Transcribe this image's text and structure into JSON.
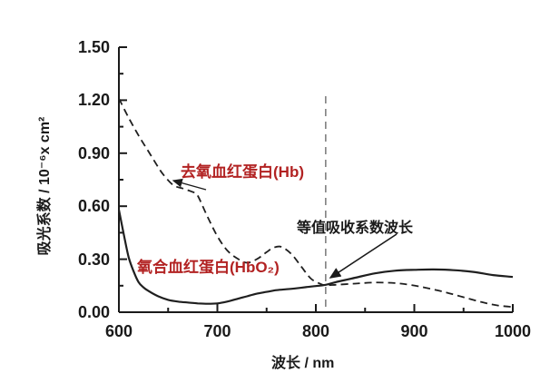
{
  "colors": {
    "curve": "#1f1f1f",
    "axis": "#1a1a1a",
    "red_label": "#b22222",
    "isosbestic_line": "#777777"
  },
  "labels": {
    "y_axis": "吸光系数 / 10⁻⁶x cm²",
    "x_axis": "波长 / nm",
    "hb": "去氧血红蛋白(Hb)",
    "hbo2": "氧合血红蛋白(HbO₂)",
    "annotation": "等值吸收系数波长"
  },
  "chart_data": {
    "type": "line",
    "title": "",
    "xlabel": "波长 / nm",
    "ylabel": "吸光系数 / 10⁻⁶x cm²",
    "xlim": [
      600,
      1000
    ],
    "ylim": [
      0,
      1.5
    ],
    "grid": false,
    "legend_position": "inline-labels",
    "x_major_ticks": [
      600,
      700,
      800,
      900,
      1000
    ],
    "x_minor_ticks": [
      650,
      750,
      850,
      950
    ],
    "y_major_ticks": [
      0.0,
      0.3,
      0.6,
      0.9,
      1.2,
      1.5
    ],
    "y_minor_ticks": [
      0.15,
      0.45,
      0.75,
      1.05,
      1.35
    ],
    "series": [
      {
        "name": "去氧血红蛋白(Hb)",
        "style": "dashed",
        "x": [
          600,
          610,
          620,
          630,
          640,
          645,
          655,
          665,
          675,
          680,
          690,
          700,
          710,
          720,
          730,
          740,
          750,
          757,
          765,
          775,
          785,
          795,
          805,
          810,
          820,
          840,
          860,
          880,
          895,
          910,
          930,
          950,
          970,
          985,
          1000
        ],
        "y": [
          1.21,
          1.1,
          1.0,
          0.91,
          0.82,
          0.78,
          0.72,
          0.7,
          0.68,
          0.66,
          0.54,
          0.43,
          0.35,
          0.305,
          0.28,
          0.3,
          0.34,
          0.365,
          0.37,
          0.33,
          0.26,
          0.19,
          0.16,
          0.153,
          0.155,
          0.162,
          0.168,
          0.165,
          0.155,
          0.14,
          0.115,
          0.085,
          0.055,
          0.038,
          0.03
        ]
      },
      {
        "name": "氧合血红蛋白(HbO₂)",
        "style": "solid",
        "x": [
          600,
          605,
          610,
          615,
          620,
          625,
          630,
          640,
          650,
          660,
          670,
          680,
          690,
          700,
          710,
          720,
          730,
          740,
          750,
          760,
          770,
          780,
          790,
          800,
          810,
          820,
          840,
          860,
          880,
          900,
          920,
          940,
          960,
          980,
          1000
        ],
        "y": [
          0.58,
          0.44,
          0.31,
          0.23,
          0.17,
          0.14,
          0.12,
          0.09,
          0.07,
          0.06,
          0.055,
          0.05,
          0.048,
          0.05,
          0.06,
          0.075,
          0.09,
          0.105,
          0.115,
          0.125,
          0.13,
          0.135,
          0.142,
          0.148,
          0.155,
          0.17,
          0.195,
          0.22,
          0.235,
          0.24,
          0.242,
          0.238,
          0.228,
          0.21,
          0.2
        ]
      }
    ],
    "isosbestic_point": {
      "label": "等值吸收系数波长",
      "wavelength_nm": 810,
      "value": 0.15
    }
  }
}
